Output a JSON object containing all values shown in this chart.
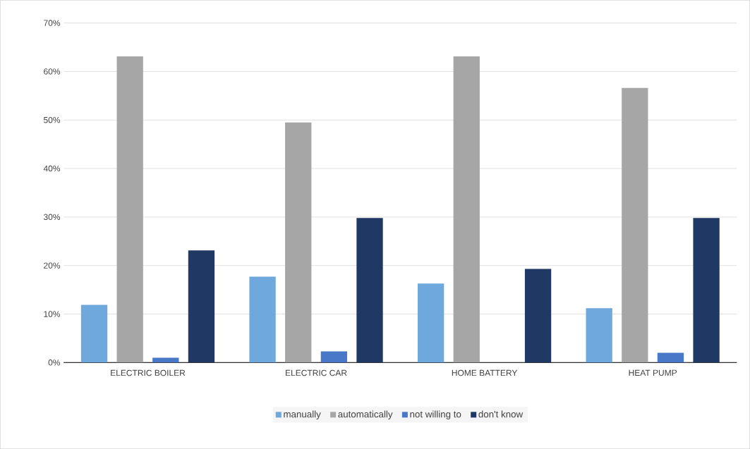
{
  "chart_data": {
    "type": "bar",
    "categories": [
      "ELECTRIC BOILER",
      "ELECTRIC CAR",
      "HOME BATTERY",
      "HEAT PUMP"
    ],
    "series": [
      {
        "name": "manually",
        "color": "#6fa8dc",
        "values": [
          11.9,
          17.7,
          16.3,
          11.2
        ]
      },
      {
        "name": "automatically",
        "color": "#a6a6a6",
        "values": [
          63.1,
          49.5,
          63.1,
          56.6
        ]
      },
      {
        "name": "not willing to",
        "color": "#4a78c8",
        "values": [
          1.0,
          2.3,
          0,
          2.0
        ]
      },
      {
        "name": "don't know",
        "color": "#1f3864",
        "values": [
          23.1,
          29.8,
          19.3,
          29.8
        ]
      }
    ],
    "ylim": [
      0,
      70
    ],
    "yticks": [
      {
        "value": 0,
        "label": "0%"
      },
      {
        "value": 10,
        "label": "10%"
      },
      {
        "value": 20,
        "label": "20%"
      },
      {
        "value": 30,
        "label": "30%"
      },
      {
        "value": 40,
        "label": "40%"
      },
      {
        "value": 50,
        "label": "50%"
      },
      {
        "value": 60,
        "label": "60%"
      },
      {
        "value": 70,
        "label": "70%"
      }
    ],
    "grid": "y",
    "legend": "bottom"
  }
}
